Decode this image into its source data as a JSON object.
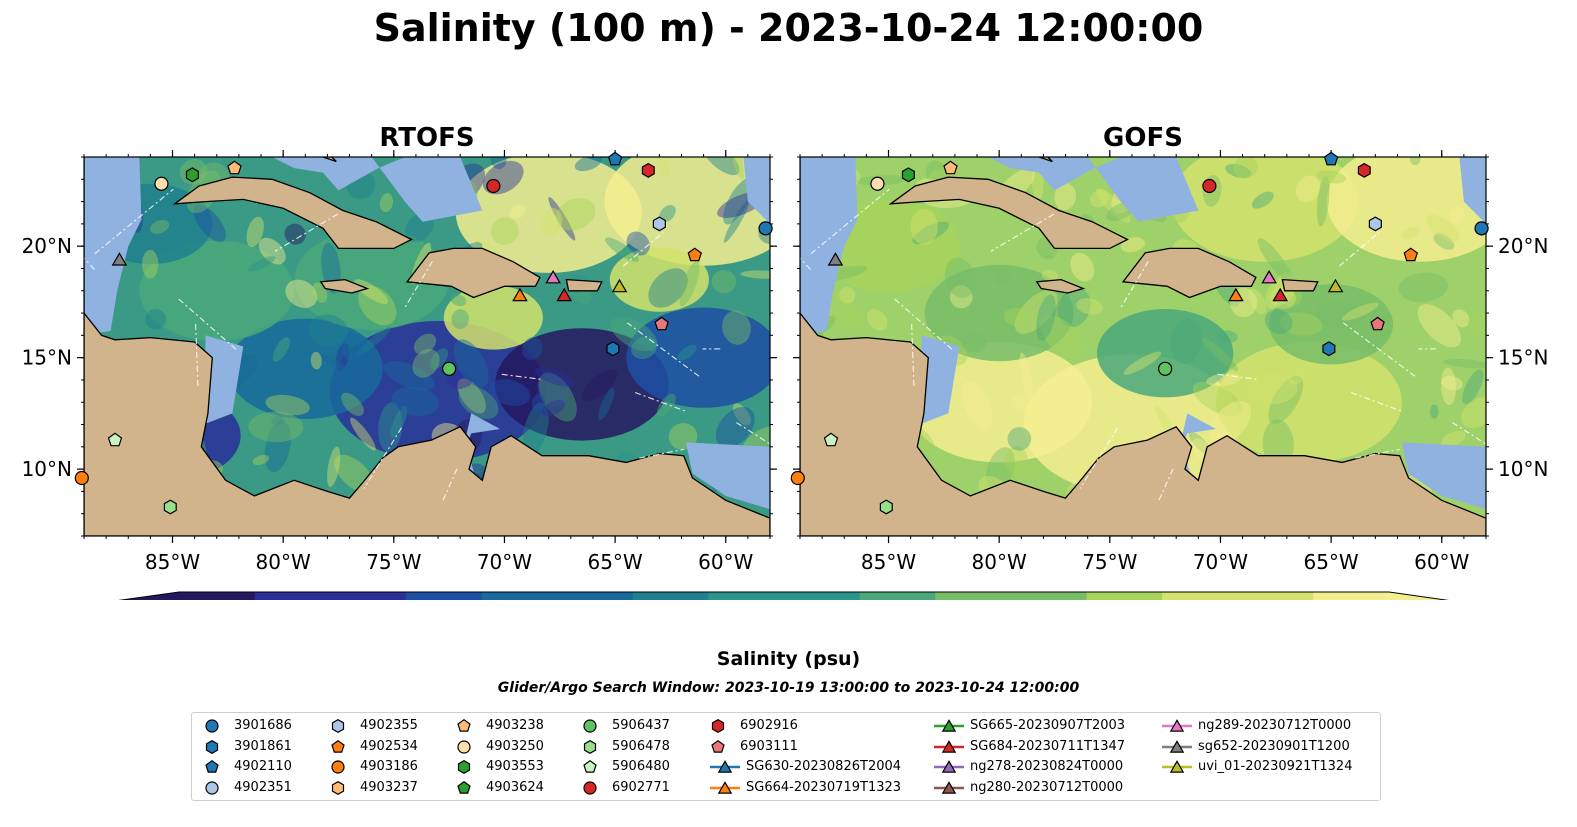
{
  "title": "Salinity (100 m) - 2023-10-24 12:00:00",
  "chart_data": {
    "type": "heatmap",
    "panels": [
      {
        "title": "RTOFS"
      },
      {
        "title": "GOFS"
      }
    ],
    "x_ticks": [
      "85°W",
      "80°W",
      "75°W",
      "70°W",
      "65°W",
      "60°W"
    ],
    "x_tick_values": [
      -85,
      -80,
      -75,
      -70,
      -65,
      -60
    ],
    "y_ticks": [
      "20°N",
      "15°N",
      "10°N"
    ],
    "y_tick_values": [
      20,
      15,
      10
    ],
    "xlim": [
      -89,
      -58
    ],
    "ylim": [
      7,
      24
    ],
    "colorbar": {
      "label": "Salinity (psu)",
      "range": [
        35.5,
        37.1
      ],
      "ticks": [
        "35.5",
        "35.7",
        "35.9",
        "36.1",
        "36.3",
        "36.5",
        "36.7",
        "36.9",
        "37.1"
      ],
      "extend": "both"
    },
    "search_window": "Glider/Argo Search Window: 2023-10-19 13:00:00 to 2023-10-24 12:00:00",
    "legend_columns": [
      [
        {
          "label": "3901686",
          "marker": "circle",
          "color": "#1f77b4"
        },
        {
          "label": "3901861",
          "marker": "hexagon",
          "color": "#1f77b4"
        },
        {
          "label": "4902110",
          "marker": "pentagon",
          "color": "#1f77b4"
        },
        {
          "label": "4902351",
          "marker": "circle",
          "color": "#aec7e8"
        }
      ],
      [
        {
          "label": "4902355",
          "marker": "hexagon",
          "color": "#aec7e8"
        },
        {
          "label": "4902534",
          "marker": "pentagon",
          "color": "#ff7f0e"
        },
        {
          "label": "4903186",
          "marker": "circle",
          "color": "#ff7f0e"
        },
        {
          "label": "4903237",
          "marker": "hexagon",
          "color": "#ffbb78"
        }
      ],
      [
        {
          "label": "4903238",
          "marker": "pentagon",
          "color": "#ffbb78"
        },
        {
          "label": "4903250",
          "marker": "circle",
          "color": "#ffdfb0"
        },
        {
          "label": "4903553",
          "marker": "hexagon",
          "color": "#2ca02c"
        },
        {
          "label": "4903624",
          "marker": "pentagon",
          "color": "#2ca02c"
        }
      ],
      [
        {
          "label": "5906437",
          "marker": "circle",
          "color": "#5fc35f"
        },
        {
          "label": "5906478",
          "marker": "hexagon",
          "color": "#98df8a"
        },
        {
          "label": "5906480",
          "marker": "pentagon",
          "color": "#c9f2c0"
        },
        {
          "label": "6902771",
          "marker": "circle",
          "color": "#d62728"
        }
      ],
      [
        {
          "label": "6902916",
          "marker": "hexagon",
          "color": "#d62728"
        },
        {
          "label": "6903111",
          "marker": "pentagon",
          "color": "#e8777a"
        },
        {
          "label": "SG630-20230826T2004",
          "marker": "triangle-line",
          "color": "#1f77b4"
        },
        {
          "label": "SG664-20230719T1323",
          "marker": "triangle-line",
          "color": "#ff7f0e"
        }
      ],
      [
        {
          "label": "SG665-20230907T2003",
          "marker": "triangle-line",
          "color": "#2ca02c"
        },
        {
          "label": "SG684-20230711T1347",
          "marker": "triangle-line",
          "color": "#d62728"
        },
        {
          "label": "ng278-20230824T0000",
          "marker": "triangle-line",
          "color": "#9467bd"
        },
        {
          "label": "ng280-20230712T0000",
          "marker": "triangle-line",
          "color": "#8c564b"
        }
      ],
      [
        {
          "label": "ng289-20230712T0000",
          "marker": "triangle-line",
          "color": "#e377c2"
        },
        {
          "label": "sg652-20230901T1200",
          "marker": "triangle-line",
          "color": "#7f7f7f"
        },
        {
          "label": "uvi_01-20230921T1324",
          "marker": "triangle-line",
          "color": "#bcbd22"
        }
      ]
    ],
    "platform_positions": [
      {
        "id": "3901686",
        "lon": -58.2,
        "lat": 20.8
      },
      {
        "id": "3901861",
        "lon": -65.1,
        "lat": 15.4
      },
      {
        "id": "4902110",
        "lon": -65.0,
        "lat": 23.9
      },
      {
        "id": "4902355",
        "lon": -63.0,
        "lat": 21.0
      },
      {
        "id": "4902534",
        "lon": -61.4,
        "lat": 19.6
      },
      {
        "id": "4903186",
        "lon": -89.1,
        "lat": 9.6
      },
      {
        "id": "4903238",
        "lon": -82.2,
        "lat": 23.5
      },
      {
        "id": "4903250",
        "lon": -85.5,
        "lat": 22.8
      },
      {
        "id": "4903553",
        "lon": -84.1,
        "lat": 23.2
      },
      {
        "id": "5906437",
        "lon": -72.5,
        "lat": 14.5
      },
      {
        "id": "5906478",
        "lon": -85.1,
        "lat": 8.3
      },
      {
        "id": "5906480",
        "lon": -87.6,
        "lat": 11.3
      },
      {
        "id": "6902771",
        "lon": -70.5,
        "lat": 22.7
      },
      {
        "id": "6902916",
        "lon": -63.5,
        "lat": 23.4
      },
      {
        "id": "6903111",
        "lon": -62.9,
        "lat": 16.5
      },
      {
        "id": "SG664-20230719T1323",
        "lon": -69.3,
        "lat": 17.8
      },
      {
        "id": "SG684-20230711T1347",
        "lon": -67.3,
        "lat": 17.8
      },
      {
        "id": "ng289-20230712T0000",
        "lon": -67.8,
        "lat": 18.6
      },
      {
        "id": "sg652-20230901T1200",
        "lon": -87.4,
        "lat": 19.4
      },
      {
        "id": "uvi_01-20230921T1324",
        "lon": -64.8,
        "lat": 18.2
      }
    ]
  },
  "colors": {
    "land": "#d2b48c",
    "shallow": "#90b2e0",
    "deep": "#2b1b77",
    "colormap": [
      "#26185f",
      "#2a2f9a",
      "#1d4fa3",
      "#176a9b",
      "#20808f",
      "#2c9589",
      "#4aa87a",
      "#77bd67",
      "#a7d35c",
      "#d2e26c",
      "#f5ee8f"
    ]
  }
}
